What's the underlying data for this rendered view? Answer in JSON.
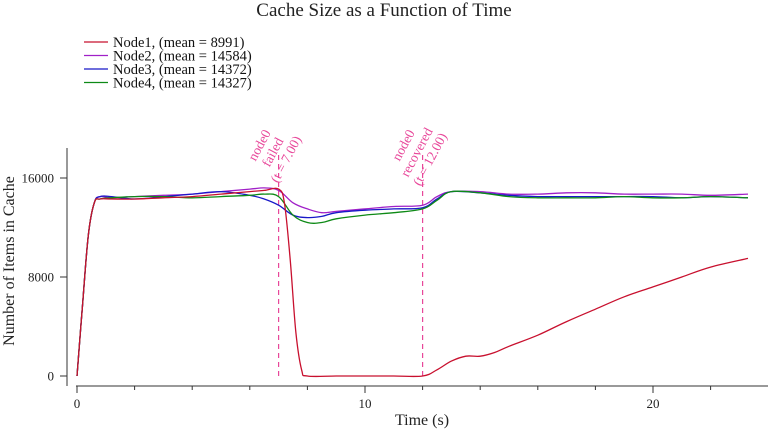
{
  "chart_data": {
    "type": "line",
    "title": "Cache Size as a Function of Time",
    "xlabel": "Time (s)",
    "ylabel": "Number of Items in Cache",
    "xlim": [
      0,
      23.4
    ],
    "ylim": [
      0,
      18000
    ],
    "xticks": [
      0,
      10,
      20
    ],
    "xtick_labels": [
      "0",
      "10",
      "20"
    ],
    "xticks_minor": [
      2,
      4,
      6,
      8,
      12,
      14,
      16,
      18,
      22
    ],
    "yticks": [
      0,
      8000,
      16000
    ],
    "ytick_labels": [
      "0",
      "8000",
      "16000"
    ],
    "grid": false,
    "legend_position": "top-left",
    "annotation_color": "#e8479a",
    "annotations": [
      {
        "x": 7.0,
        "lines": [
          "node0",
          "failed",
          "(t = 7.00)"
        ]
      },
      {
        "x": 12.0,
        "lines": [
          "node0",
          "recovered",
          "(t = 12.00)"
        ]
      }
    ],
    "series": [
      {
        "name": "Node1, (mean = 8991)",
        "color": "#c8102e",
        "x": [
          0,
          0.2,
          0.4,
          0.6,
          0.8,
          1.2,
          2,
          3,
          4,
          5,
          6,
          6.5,
          7,
          7.2,
          7.4,
          7.6,
          7.8,
          8,
          9,
          10,
          11,
          12,
          12.5,
          13,
          13.5,
          14,
          14.5,
          15,
          16,
          17,
          18,
          19,
          20,
          21,
          22,
          23.3
        ],
        "y": [
          0,
          6000,
          11500,
          14000,
          14300,
          14300,
          14300,
          14400,
          14500,
          14700,
          14900,
          15000,
          15100,
          14000,
          9500,
          3500,
          500,
          0,
          0,
          0,
          0,
          0,
          500,
          1200,
          1600,
          1600,
          1900,
          2400,
          3300,
          4400,
          5400,
          6400,
          7200,
          8000,
          8800,
          9500
        ]
      },
      {
        "name": "Node2, (mean = 14584)",
        "color": "#a020c8",
        "x": [
          0,
          0.2,
          0.4,
          0.6,
          0.8,
          1.2,
          2,
          3,
          4,
          5,
          6,
          6.5,
          7,
          7.5,
          8,
          8.5,
          9,
          10,
          11,
          12,
          12.5,
          13,
          14,
          15,
          16,
          17,
          18,
          19,
          20,
          21,
          22,
          23.3
        ],
        "y": [
          0,
          6000,
          11500,
          14000,
          14500,
          14400,
          14500,
          14600,
          14700,
          14900,
          15100,
          15200,
          15000,
          14000,
          13500,
          13200,
          13300,
          13500,
          13700,
          13800,
          14500,
          14900,
          14900,
          14700,
          14700,
          14800,
          14800,
          14700,
          14700,
          14700,
          14600,
          14700
        ]
      },
      {
        "name": "Node3, (mean = 14372)",
        "color": "#1818c8",
        "x": [
          0,
          0.2,
          0.4,
          0.6,
          0.8,
          1.2,
          2,
          3,
          4,
          5,
          6,
          6.5,
          7,
          7.5,
          8,
          8.5,
          9,
          10,
          11,
          12,
          12.5,
          13,
          14,
          15,
          16,
          17,
          18,
          19,
          20,
          21,
          22,
          23.3
        ],
        "y": [
          0,
          6000,
          11500,
          14000,
          14500,
          14500,
          14300,
          14500,
          14700,
          14900,
          14600,
          14300,
          13800,
          13000,
          12800,
          12900,
          13200,
          13400,
          13500,
          13600,
          14300,
          14900,
          14800,
          14600,
          14500,
          14500,
          14500,
          14500,
          14500,
          14400,
          14500,
          14400
        ]
      },
      {
        "name": "Node4, (mean = 14327)",
        "color": "#0e8a16",
        "x": [
          0,
          0.2,
          0.4,
          0.6,
          0.8,
          1.2,
          2,
          3,
          4,
          5,
          6,
          6.5,
          7,
          7.5,
          8,
          8.5,
          9,
          10,
          11,
          12,
          12.5,
          13,
          14,
          15,
          16,
          17,
          18,
          19,
          20,
          21,
          22,
          23.3
        ],
        "y": [
          0,
          6000,
          11500,
          14000,
          14300,
          14400,
          14500,
          14500,
          14400,
          14500,
          14600,
          14700,
          14500,
          13000,
          12400,
          12400,
          12700,
          13000,
          13200,
          13500,
          14200,
          14900,
          14800,
          14500,
          14400,
          14400,
          14400,
          14500,
          14400,
          14400,
          14500,
          14400
        ]
      }
    ]
  }
}
